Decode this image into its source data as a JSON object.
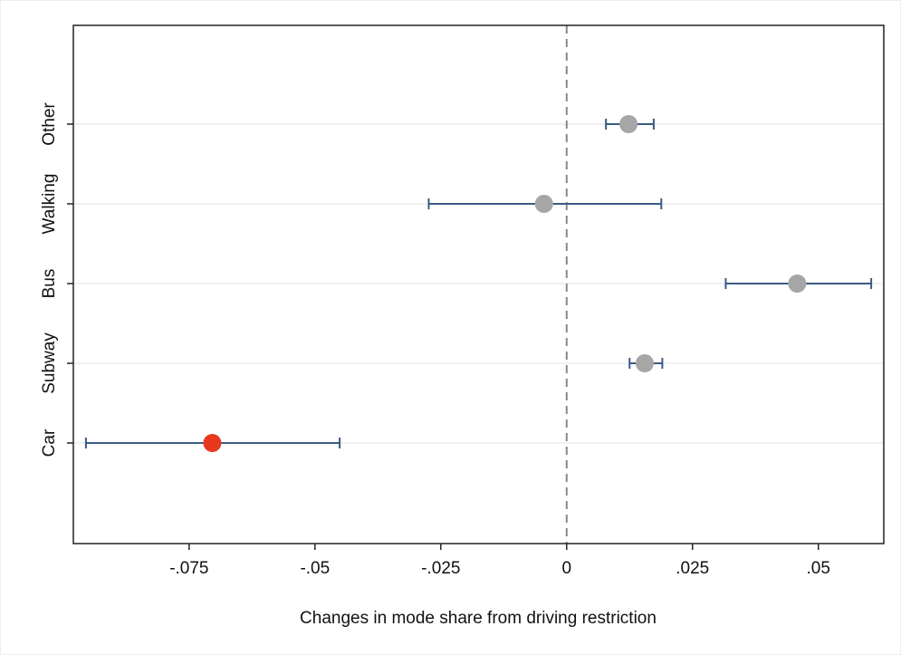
{
  "chart_data": {
    "type": "coefplot",
    "xlabel": "Changes in mode share from driving restriction",
    "categories": [
      "Car",
      "Subway",
      "Bus",
      "Walking",
      "Other"
    ],
    "values": [
      -0.0704,
      0.0155,
      0.0458,
      -0.0045,
      0.0123
    ],
    "lower": [
      -0.0955,
      0.0125,
      0.0316,
      -0.0274,
      0.0078
    ],
    "upper": [
      -0.0451,
      0.019,
      0.0605,
      0.0188,
      0.0173
    ],
    "colors": [
      "#e8391f",
      "#a6a6a6",
      "#a6a6a6",
      "#a6a6a6",
      "#a6a6a6"
    ],
    "ci_color": "#3b5a86",
    "xlim": [
      -0.098,
      0.063
    ],
    "xticks": [
      {
        "value": -0.075,
        "label": "-.075"
      },
      {
        "value": -0.05,
        "label": "-.05"
      },
      {
        "value": -0.025,
        "label": "-.025"
      },
      0,
      {
        "value": 0.025,
        "label": ".025"
      },
      {
        "value": 0.05,
        "label": ".05"
      }
    ],
    "reference_line": 0,
    "grid": true
  }
}
